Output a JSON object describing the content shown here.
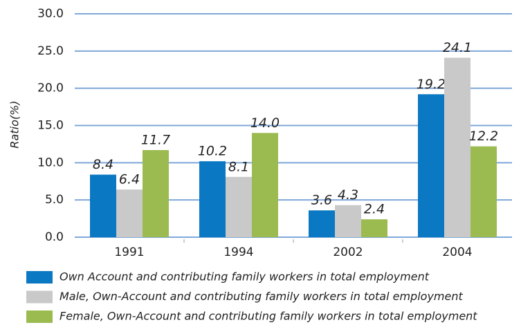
{
  "chart_data": {
    "type": "bar",
    "y_label": "Ratio(%)",
    "categories": [
      "1991",
      "1994",
      "2002",
      "2004"
    ],
    "series": [
      {
        "name": "Own Account and contributing family workers in total employment",
        "color": "#0a78c2",
        "values": [
          8.4,
          10.2,
          3.6,
          19.2
        ],
        "value_labels": [
          "8.4",
          "10.2",
          "3.6",
          "19.2"
        ]
      },
      {
        "name": "Male, Own-Account and contributing family workers in total employment",
        "color": "#c9c9c9",
        "values": [
          6.4,
          8.1,
          4.3,
          24.1
        ],
        "value_labels": [
          "6.4",
          "8.1",
          "4.3",
          "24.1"
        ]
      },
      {
        "name": "Female, Own-Account and contributing family workers in total employment",
        "color": "#9bbb50",
        "values": [
          11.7,
          14.0,
          2.4,
          12.2
        ],
        "value_labels": [
          "11.7",
          "14.0",
          "2.4",
          "12.2"
        ]
      }
    ],
    "ylim": [
      0,
      30
    ],
    "yticks": [
      {
        "value": 0,
        "label": "0.0"
      },
      {
        "value": 5,
        "label": "5.0"
      },
      {
        "value": 10,
        "label": "10.0"
      },
      {
        "value": 15,
        "label": "15.0"
      },
      {
        "value": 20,
        "label": "20.0"
      },
      {
        "value": 25,
        "label": "25.0"
      },
      {
        "value": 30,
        "label": "30.0"
      }
    ],
    "grid": true
  }
}
